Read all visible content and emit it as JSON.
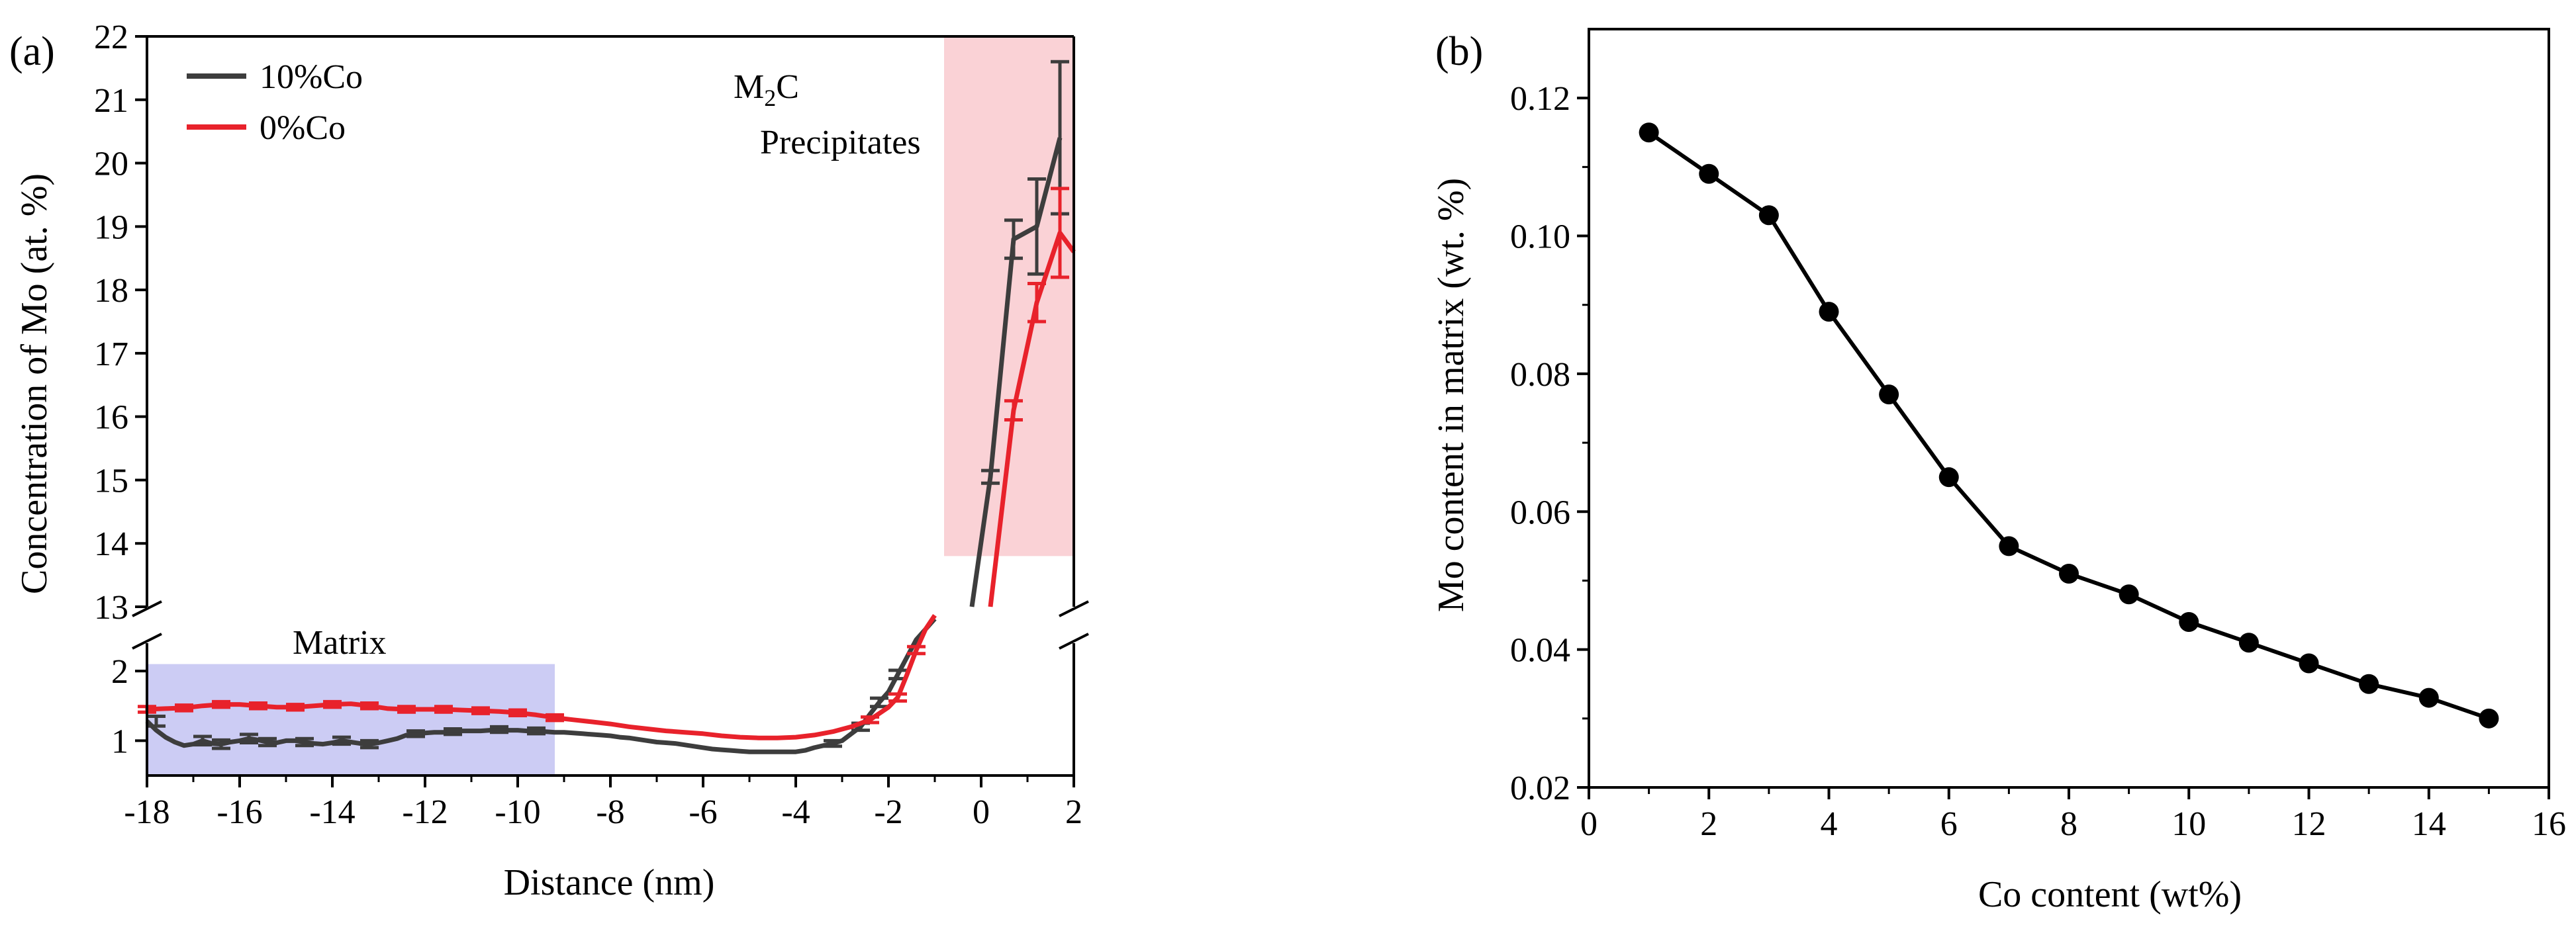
{
  "colors": {
    "co10": "#3d3d3d",
    "co0": "#e8222b",
    "axis": "#000000",
    "precip_fill": "#f5a6ad",
    "matrix_fill": "#8f8fe6"
  },
  "chart_data": [
    {
      "type": "line",
      "panel": "(a)",
      "xlabel": "Distance (nm)",
      "ylabel": "Concentration of Mo (at. %)",
      "xlim": [
        -18,
        2
      ],
      "x_ticks": [
        -18,
        -16,
        -14,
        -12,
        -10,
        -8,
        -6,
        -4,
        -2,
        0,
        2
      ],
      "y_broken_axis": true,
      "y_lower_range": [
        0.5,
        2.4
      ],
      "y_lower_ticks": [
        1,
        2
      ],
      "y_upper_range": [
        13,
        22
      ],
      "y_upper_ticks": [
        13,
        14,
        15,
        16,
        17,
        18,
        19,
        20,
        21,
        22
      ],
      "legend": [
        "10%Co",
        "0%Co"
      ],
      "annotations": {
        "precip_line1": "M",
        "precip_sub": "2",
        "precip_line1_end": "C",
        "precip_line2": "Precipitates",
        "matrix": "Matrix"
      },
      "regions": {
        "matrix_x": [
          -18,
          -9.2
        ],
        "matrix_y": [
          0.5,
          2.1
        ],
        "precip_x": [
          -0.8,
          2
        ],
        "precip_y": [
          13.8,
          22
        ]
      },
      "series": [
        {
          "name": "10%Co",
          "lower": {
            "x": [
              -18,
              -17.8,
              -17.6,
              -17.4,
              -17.2,
              -17,
              -16.8,
              -16.6,
              -16.4,
              -16.2,
              -16,
              -15.8,
              -15.6,
              -15.4,
              -15.2,
              -15,
              -14.8,
              -14.6,
              -14.4,
              -14.2,
              -14,
              -13.8,
              -13.6,
              -13.4,
              -13.2,
              -13,
              -12.8,
              -12.6,
              -12.4,
              -12.2,
              -12,
              -11.8,
              -11.6,
              -11.4,
              -11.2,
              -11,
              -10.8,
              -10.6,
              -10.4,
              -10.2,
              -10,
              -9.8,
              -9.6,
              -9.4,
              -9.2,
              -9,
              -8.8,
              -8.6,
              -8.4,
              -8.2,
              -8,
              -7.8,
              -7.6,
              -7.4,
              -7.2,
              -7,
              -6.8,
              -6.6,
              -6.4,
              -6.2,
              -6,
              -5.8,
              -5.6,
              -5.4,
              -5.2,
              -5,
              -4.8,
              -4.6,
              -4.4,
              -4.2,
              -4,
              -3.8,
              -3.6,
              -3.4,
              -3.2,
              -3,
              -2.8,
              -2.6,
              -2.4,
              -2.2,
              -2,
              -1.8,
              -1.6,
              -1.4,
              -1.2,
              -1.0
            ],
            "y": [
              1.28,
              1.15,
              1.05,
              0.98,
              0.93,
              0.95,
              1.0,
              0.96,
              0.95,
              0.98,
              1.0,
              1.03,
              1.01,
              0.98,
              0.97,
              1.0,
              1.0,
              0.98,
              0.96,
              0.95,
              0.97,
              1.0,
              0.98,
              0.96,
              0.95,
              0.97,
              1.0,
              1.03,
              1.08,
              1.1,
              1.11,
              1.12,
              1.12,
              1.13,
              1.14,
              1.14,
              1.14,
              1.15,
              1.16,
              1.15,
              1.15,
              1.14,
              1.14,
              1.13,
              1.12,
              1.12,
              1.11,
              1.1,
              1.09,
              1.08,
              1.07,
              1.05,
              1.04,
              1.02,
              1.0,
              0.98,
              0.97,
              0.96,
              0.94,
              0.92,
              0.9,
              0.88,
              0.87,
              0.86,
              0.85,
              0.84,
              0.84,
              0.84,
              0.84,
              0.84,
              0.84,
              0.86,
              0.9,
              0.93,
              0.96,
              1.0,
              1.1,
              1.2,
              1.38,
              1.55,
              1.7,
              1.95,
              2.2,
              2.45,
              2.6,
              2.75
            ]
          },
          "upper": {
            "x": [
              -0.2,
              0.2,
              0.7,
              1.2,
              1.7
            ],
            "y": [
              13.0,
              15.05,
              18.8,
              19.0,
              20.4
            ]
          },
          "error_bars": [
            {
              "x": -17.8,
              "y": 1.28,
              "err": 0.07
            },
            {
              "x": -16.8,
              "y": 1.0,
              "err": 0.06
            },
            {
              "x": -16.4,
              "y": 0.95,
              "err": 0.06
            },
            {
              "x": -15.8,
              "y": 1.03,
              "err": 0.06
            },
            {
              "x": -15.4,
              "y": 0.98,
              "err": 0.05
            },
            {
              "x": -14.6,
              "y": 0.98,
              "err": 0.05
            },
            {
              "x": -13.8,
              "y": 1.0,
              "err": 0.05
            },
            {
              "x": -13.2,
              "y": 0.95,
              "err": 0.05
            },
            {
              "x": -12.2,
              "y": 1.1,
              "err": 0.04
            },
            {
              "x": -11.4,
              "y": 1.13,
              "err": 0.04
            },
            {
              "x": -10.4,
              "y": 1.16,
              "err": 0.04
            },
            {
              "x": -9.6,
              "y": 1.14,
              "err": 0.04
            },
            {
              "x": -3.2,
              "y": 0.96,
              "err": 0.04
            },
            {
              "x": -2.6,
              "y": 1.2,
              "err": 0.05
            },
            {
              "x": -2.2,
              "y": 1.55,
              "err": 0.06
            },
            {
              "x": -1.8,
              "y": 1.95,
              "err": 0.06
            },
            {
              "x": 0.2,
              "y": 15.05,
              "err": 0.1,
              "upper": true
            },
            {
              "x": 0.7,
              "y": 18.8,
              "err": 0.3,
              "upper": true
            },
            {
              "x": 1.2,
              "y": 19.0,
              "err": 0.75,
              "upper": true
            },
            {
              "x": 1.7,
              "y": 20.4,
              "err": 1.2,
              "upper": true
            }
          ]
        },
        {
          "name": "0%Co",
          "lower": {
            "x": [
              -18,
              -17.6,
              -17.2,
              -16.8,
              -16.4,
              -16,
              -15.6,
              -15.2,
              -14.8,
              -14.4,
              -14,
              -13.6,
              -13.2,
              -12.8,
              -12.4,
              -12,
              -11.6,
              -11.2,
              -10.8,
              -10.4,
              -10,
              -9.6,
              -9.2,
              -8.8,
              -8.4,
              -8,
              -7.6,
              -7.2,
              -6.8,
              -6.4,
              -6,
              -5.6,
              -5.2,
              -4.8,
              -4.4,
              -4,
              -3.6,
              -3.2,
              -2.8,
              -2.4,
              -2,
              -1.8,
              -1.6,
              -1.4,
              -1.2,
              -1.0
            ],
            "y": [
              1.45,
              1.46,
              1.47,
              1.5,
              1.52,
              1.52,
              1.5,
              1.48,
              1.48,
              1.5,
              1.52,
              1.53,
              1.5,
              1.46,
              1.45,
              1.45,
              1.45,
              1.44,
              1.43,
              1.42,
              1.4,
              1.37,
              1.33,
              1.3,
              1.27,
              1.24,
              1.2,
              1.17,
              1.14,
              1.12,
              1.1,
              1.07,
              1.05,
              1.04,
              1.04,
              1.05,
              1.08,
              1.13,
              1.2,
              1.3,
              1.48,
              1.62,
              1.95,
              2.3,
              2.6,
              2.8
            ]
          },
          "upper": {
            "x": [
              0.2,
              0.7,
              1.2,
              1.7,
              2.0
            ],
            "y": [
              13.0,
              16.1,
              17.8,
              18.9,
              18.6
            ]
          },
          "error_bars": [
            {
              "x": -18,
              "y": 1.45,
              "err": 0.04
            },
            {
              "x": -17.2,
              "y": 1.47,
              "err": 0.04
            },
            {
              "x": -16.4,
              "y": 1.52,
              "err": 0.04
            },
            {
              "x": -15.6,
              "y": 1.5,
              "err": 0.04
            },
            {
              "x": -14.8,
              "y": 1.48,
              "err": 0.04
            },
            {
              "x": -14,
              "y": 1.52,
              "err": 0.04
            },
            {
              "x": -13.2,
              "y": 1.5,
              "err": 0.04
            },
            {
              "x": -12.4,
              "y": 1.45,
              "err": 0.04
            },
            {
              "x": -11.6,
              "y": 1.45,
              "err": 0.04
            },
            {
              "x": -10.8,
              "y": 1.43,
              "err": 0.04
            },
            {
              "x": -10,
              "y": 1.4,
              "err": 0.04
            },
            {
              "x": -9.2,
              "y": 1.33,
              "err": 0.04
            },
            {
              "x": -2.4,
              "y": 1.3,
              "err": 0.04
            },
            {
              "x": -1.8,
              "y": 1.62,
              "err": 0.05
            },
            {
              "x": -1.4,
              "y": 2.3,
              "err": 0.05
            },
            {
              "x": 0.7,
              "y": 16.1,
              "err": 0.15,
              "upper": true
            },
            {
              "x": 1.2,
              "y": 17.8,
              "err": 0.3,
              "upper": true
            },
            {
              "x": 1.7,
              "y": 18.9,
              "err": 0.7,
              "upper": true
            }
          ]
        }
      ]
    },
    {
      "type": "line",
      "panel": "(b)",
      "xlabel": "Co content (wt%)",
      "ylabel": "Mo content in matrix (wt. %)",
      "xlim": [
        0,
        16
      ],
      "ylim": [
        0.02,
        0.13
      ],
      "x_ticks": [
        0,
        2,
        4,
        6,
        8,
        10,
        12,
        14,
        16
      ],
      "y_ticks": [
        0.02,
        0.04,
        0.06,
        0.08,
        0.1,
        0.12
      ],
      "y_tick_labels": [
        "0.02",
        "0.04",
        "0.06",
        "0.08",
        "0.10",
        "0.12"
      ],
      "x": [
        1,
        2,
        3,
        4,
        5,
        6,
        7,
        8,
        9,
        10,
        11,
        12,
        13,
        14,
        15
      ],
      "y": [
        0.115,
        0.109,
        0.103,
        0.089,
        0.077,
        0.065,
        0.055,
        0.051,
        0.048,
        0.044,
        0.041,
        0.038,
        0.035,
        0.033,
        0.03
      ]
    }
  ]
}
